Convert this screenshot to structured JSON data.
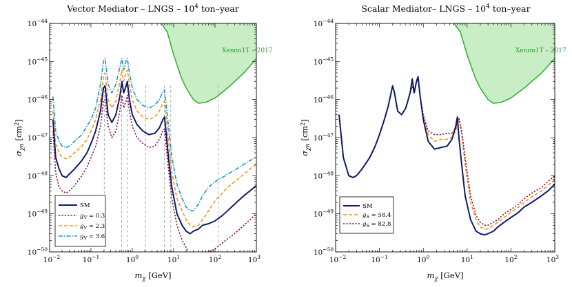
{
  "colors": {
    "sm": "#0b1a6e",
    "s1": "#8b1045",
    "s2": "#f5921b",
    "s3": "#1596b8",
    "xenon_fill": "#c9eec6",
    "xenon_line": "#31b531",
    "dashed_lines": "#999999"
  },
  "chart_data": [
    {
      "type": "line",
      "title": "Vector Mediator – LNGS – 10",
      "title_sup": "4",
      "title_tail": " ton–year",
      "xlabel_main": "m",
      "xlabel_sub": "χ",
      "xlabel_unit": " [GeV]",
      "ylabel_main": "σ",
      "ylabel_sub": "χn",
      "ylabel_unit": " [cm",
      "ylabel_sup": "2",
      "ylabel_close": "]",
      "xscale": "log",
      "yscale": "log",
      "xlim": [
        0.01,
        1000
      ],
      "ylim": [
        1e-50,
        1e-44
      ],
      "x_ticks": [
        {
          "base": "10",
          "exp": "−2"
        },
        {
          "base": "10",
          "exp": "−1"
        },
        {
          "base": "10",
          "exp": "0"
        },
        {
          "base": "10",
          "exp": "1"
        },
        {
          "base": "10",
          "exp": "2"
        },
        {
          "base": "10",
          "exp": "3"
        }
      ],
      "y_ticks": [
        {
          "base": "10",
          "exp": "−50"
        },
        {
          "base": "10",
          "exp": "−49"
        },
        {
          "base": "10",
          "exp": "−48"
        },
        {
          "base": "10",
          "exp": "−47"
        },
        {
          "base": "10",
          "exp": "−46"
        },
        {
          "base": "10",
          "exp": "−45"
        },
        {
          "base": "10",
          "exp": "−44"
        }
      ],
      "legend_position": "bottom-left",
      "xenon": {
        "label": "Xenon1T – 2017",
        "x": [
          5,
          7,
          10,
          15,
          20,
          30,
          40,
          60,
          100,
          200,
          500,
          1000
        ],
        "y": [
          1e-44,
          6e-45,
          1.5e-45,
          4e-46,
          2e-46,
          1e-46,
          8e-47,
          8.5e-47,
          1.1e-46,
          2e-46,
          5e-46,
          1.2e-45
        ]
      },
      "dashed_x": [
        0.21,
        0.55,
        0.75,
        2.1,
        6,
        8.5,
        120
      ],
      "series": [
        {
          "name": "SM",
          "key": "sm",
          "dash": "",
          "width": 2.0,
          "x": [
            0.012,
            0.014,
            0.017,
            0.02,
            0.025,
            0.03,
            0.04,
            0.06,
            0.08,
            0.1,
            0.13,
            0.17,
            0.2,
            0.22,
            0.26,
            0.32,
            0.4,
            0.5,
            0.56,
            0.62,
            0.7,
            0.76,
            0.85,
            1.0,
            1.3,
            1.8,
            2.5,
            3.5,
            4.5,
            5.5,
            6.0,
            6.5,
            7.5,
            9,
            12,
            16,
            20,
            25,
            30,
            40,
            50,
            70,
            100,
            150,
            200,
            300,
            500,
            700,
            1000
          ],
          "y": [
            3e-47,
            3e-48,
            1.5e-48,
            1e-48,
            9e-49,
            1.1e-48,
            1.5e-48,
            2.5e-48,
            4e-48,
            7e-48,
            1.5e-47,
            5e-47,
            2e-46,
            2.3e-46,
            4e-47,
            2.5e-47,
            4e-47,
            1.2e-46,
            3e-46,
            1.5e-46,
            2.2e-46,
            3e-46,
            1e-46,
            4e-47,
            2.2e-47,
            1.5e-47,
            1.2e-47,
            1.3e-47,
            1.8e-47,
            3e-47,
            3.5e-47,
            1.5e-47,
            3e-48,
            5e-49,
            1e-49,
            5e-50,
            3.5e-50,
            3e-50,
            3.5e-50,
            4e-50,
            5e-50,
            5.5e-50,
            6.5e-50,
            9e-50,
            1.2e-49,
            1.8e-49,
            3e-49,
            4e-49,
            5.5e-49
          ]
        },
        {
          "name": "g",
          "sub": "V",
          "value": " = 0.3",
          "key": "s1",
          "dash": "2.2,2.2",
          "width": 1.6,
          "x": [
            0.012,
            0.014,
            0.017,
            0.02,
            0.025,
            0.03,
            0.04,
            0.06,
            0.08,
            0.1,
            0.13,
            0.17,
            0.2,
            0.22,
            0.26,
            0.32,
            0.4,
            0.5,
            0.56,
            0.62,
            0.7,
            0.76,
            0.85,
            1.0,
            1.3,
            1.8,
            2.5,
            3.5,
            4.5,
            5.5,
            6.0,
            6.5,
            7.5,
            9,
            12,
            16,
            20,
            25,
            30,
            40,
            50,
            70,
            100,
            150,
            200,
            300,
            500,
            700,
            1000
          ],
          "y": [
            1.5e-47,
            1.2e-48,
            5e-49,
            4e-49,
            3.5e-49,
            4e-49,
            5.5e-49,
            1e-48,
            1.7e-48,
            3e-48,
            6e-48,
            2e-47,
            9e-47,
            1e-46,
            2e-47,
            1e-47,
            1.5e-47,
            5e-47,
            1.3e-46,
            6e-47,
            9e-47,
            1.3e-46,
            5e-47,
            2e-47,
            1e-47,
            7e-48,
            5.5e-48,
            6e-48,
            9e-48,
            1.5e-47,
            1.7e-47,
            7e-48,
            1.5e-48,
            2.5e-49,
            5e-50,
            2e-50,
            1.3e-50,
            8e-51,
            8e-51,
            8.5e-51,
            9e-51,
            1e-50,
            1.2e-50,
            1.7e-50,
            2.2e-50,
            3e-50,
            5e-50,
            7e-50,
            1e-49
          ]
        },
        {
          "name": "g",
          "sub": "V",
          "value": " = 2.3",
          "key": "s2",
          "dash": "5,3",
          "width": 1.6,
          "x": [
            0.012,
            0.014,
            0.017,
            0.02,
            0.025,
            0.03,
            0.04,
            0.06,
            0.08,
            0.1,
            0.13,
            0.17,
            0.2,
            0.22,
            0.26,
            0.32,
            0.4,
            0.5,
            0.56,
            0.62,
            0.7,
            0.76,
            0.85,
            1.0,
            1.3,
            1.8,
            2.5,
            3.5,
            4.5,
            5.5,
            6.0,
            6.5,
            7.5,
            9,
            12,
            16,
            20,
            25,
            30,
            40,
            50,
            70,
            100,
            150,
            200,
            300,
            500,
            700,
            1000
          ],
          "y": [
            5e-47,
            7e-48,
            4e-48,
            3e-48,
            2.8e-48,
            3e-48,
            4e-48,
            6e-48,
            9e-48,
            1.5e-47,
            3e-47,
            1e-46,
            4e-46,
            5e-46,
            1e-46,
            6e-47,
            9e-47,
            3e-46,
            6e-46,
            3e-46,
            5e-46,
            6e-46,
            2.5e-46,
            1e-46,
            5e-47,
            3.5e-47,
            3e-47,
            3.5e-47,
            5e-47,
            8e-47,
            9e-47,
            4e-47,
            8e-48,
            1.2e-48,
            2.5e-49,
            1.2e-49,
            7e-50,
            5e-50,
            4.5e-50,
            5e-50,
            7e-50,
            1.2e-49,
            2.2e-49,
            3.5e-49,
            5e-49,
            7e-49,
            1.1e-48,
            1.5e-48,
            2e-48
          ]
        },
        {
          "name": "g",
          "sub": "V",
          "value": " = 3.6",
          "key": "s3",
          "dash": "6,2,1.5,2",
          "width": 1.6,
          "x": [
            0.012,
            0.014,
            0.017,
            0.02,
            0.025,
            0.03,
            0.04,
            0.06,
            0.08,
            0.1,
            0.13,
            0.17,
            0.2,
            0.22,
            0.26,
            0.32,
            0.4,
            0.5,
            0.56,
            0.62,
            0.7,
            0.76,
            0.85,
            1.0,
            1.3,
            1.8,
            2.5,
            3.5,
            4.5,
            5.5,
            6.0,
            6.5,
            7.5,
            9,
            12,
            16,
            20,
            25,
            30,
            40,
            50,
            70,
            100,
            150,
            200,
            300,
            500,
            700,
            1000
          ],
          "y": [
            1.2e-46,
            1.5e-47,
            8e-48,
            6e-48,
            5.5e-48,
            6e-48,
            8e-48,
            1.2e-47,
            2e-47,
            3e-47,
            6e-47,
            2.5e-46,
            1e-45,
            1.2e-45,
            2.5e-46,
            1.5e-46,
            2.5e-46,
            7e-46,
            1.2e-45,
            6e-46,
            1e-45,
            1.2e-45,
            5e-46,
            2e-46,
            1e-46,
            7e-47,
            6e-47,
            7e-47,
            1e-46,
            1.6e-46,
            1.8e-46,
            8e-47,
            2e-47,
            3e-48,
            6e-49,
            2.5e-49,
            1.5e-49,
            1.2e-49,
            1.2e-49,
            1.8e-49,
            3e-49,
            5e-49,
            7e-49,
            9e-49,
            1.1e-48,
            1.4e-48,
            2e-48,
            2.5e-48,
            3e-48
          ]
        }
      ]
    },
    {
      "type": "line",
      "title": "Scalar Mediator– LNGS – 10",
      "title_sup": "4",
      "title_tail": " ton–year",
      "xlabel_main": "m",
      "xlabel_sub": "χ",
      "xlabel_unit": " [GeV]",
      "ylabel_main": "σ",
      "ylabel_sub": "χn",
      "ylabel_unit": " [cm",
      "ylabel_sup": "2",
      "ylabel_close": "]",
      "xscale": "log",
      "yscale": "log",
      "xlim": [
        0.01,
        1000
      ],
      "ylim": [
        1e-50,
        1e-44
      ],
      "x_ticks": [
        {
          "base": "10",
          "exp": "−2"
        },
        {
          "base": "10",
          "exp": "−1"
        },
        {
          "base": "10",
          "exp": "0"
        },
        {
          "base": "10",
          "exp": "1"
        },
        {
          "base": "10",
          "exp": "2"
        },
        {
          "base": "10",
          "exp": "3"
        }
      ],
      "y_ticks": [
        {
          "base": "10",
          "exp": "−50"
        },
        {
          "base": "10",
          "exp": "−49"
        },
        {
          "base": "10",
          "exp": "−48"
        },
        {
          "base": "10",
          "exp": "−47"
        },
        {
          "base": "10",
          "exp": "−46"
        },
        {
          "base": "10",
          "exp": "−45"
        },
        {
          "base": "10",
          "exp": "−44"
        }
      ],
      "legend_position": "bottom-left",
      "xenon": {
        "label": "Xenon1T – 2017",
        "x": [
          5,
          7,
          10,
          15,
          20,
          30,
          40,
          60,
          100,
          200,
          500,
          1000
        ],
        "y": [
          1e-44,
          6e-45,
          1.5e-45,
          4e-46,
          2e-46,
          1e-46,
          8e-47,
          8.5e-47,
          1.1e-46,
          2e-46,
          5e-46,
          1.2e-45
        ]
      },
      "dashed_x": [],
      "series": [
        {
          "name": "SM",
          "key": "sm",
          "dash": "",
          "width": 2.0,
          "x": [
            0.012,
            0.015,
            0.02,
            0.025,
            0.03,
            0.04,
            0.06,
            0.08,
            0.1,
            0.13,
            0.16,
            0.2,
            0.22,
            0.26,
            0.32,
            0.4,
            0.5,
            0.56,
            0.62,
            0.7,
            0.76,
            0.85,
            1.0,
            1.3,
            1.8,
            2.5,
            3.5,
            4.5,
            5.5,
            6.0,
            6.5,
            7.5,
            9,
            12,
            16,
            20,
            25,
            30,
            40,
            50,
            70,
            100,
            150,
            200,
            300,
            500,
            700,
            1000
          ],
          "y": [
            4e-47,
            3e-48,
            1e-48,
            9e-49,
            1e-48,
            1.5e-48,
            3e-48,
            6e-48,
            1.2e-47,
            3e-47,
            7e-47,
            2.3e-46,
            1.5e-46,
            5e-47,
            4e-47,
            6e-47,
            1.5e-46,
            3.5e-46,
            1.5e-46,
            3e-46,
            4e-46,
            1.2e-46,
            3e-47,
            8e-48,
            5e-48,
            5.5e-48,
            6e-48,
            9e-48,
            2e-47,
            3.5e-47,
            1e-47,
            2e-48,
            3e-49,
            7e-50,
            3.5e-50,
            3e-50,
            2.8e-50,
            3e-50,
            3.5e-50,
            4.5e-50,
            6e-50,
            8e-50,
            1.1e-49,
            1.5e-49,
            2e-49,
            3e-49,
            4e-49,
            6e-49
          ]
        },
        {
          "name": "g",
          "sub": "S",
          "value": " = 58.4",
          "key": "s2",
          "dash": "5,3",
          "width": 1.6,
          "x": [
            0.012,
            0.015,
            0.02,
            0.025,
            0.03,
            0.04,
            0.06,
            0.08,
            0.1,
            0.13,
            0.16,
            0.2,
            0.22,
            0.26,
            0.32,
            0.4,
            0.5,
            0.56,
            0.62,
            0.7,
            0.76,
            0.85,
            1.0,
            1.3,
            1.8,
            2.5,
            3.5,
            4.5,
            5.5,
            6.0,
            6.5,
            7.5,
            9,
            12,
            16,
            20,
            25,
            30,
            40,
            50,
            70,
            100,
            150,
            200,
            300,
            500,
            700,
            1000
          ],
          "y": [
            4e-47,
            3e-48,
            1e-48,
            9e-49,
            1e-48,
            1.5e-48,
            3e-48,
            6e-48,
            1.2e-47,
            3e-47,
            7e-47,
            2.2e-46,
            1.5e-46,
            5e-47,
            4e-47,
            6e-47,
            1.5e-46,
            2.5e-46,
            1.5e-46,
            3e-46,
            3.5e-46,
            1.2e-46,
            3.5e-47,
            1.2e-47,
            8e-48,
            9e-48,
            9e-48,
            1e-47,
            1.5e-47,
            2.5e-47,
            3e-47,
            1.2e-47,
            2e-48,
            2e-49,
            7e-50,
            4.5e-50,
            4e-50,
            4e-50,
            5e-50,
            6e-50,
            8e-50,
            1.1e-49,
            1.5e-49,
            2e-49,
            2.8e-49,
            4e-49,
            5.5e-49,
            8e-49
          ]
        },
        {
          "name": "g",
          "sub": "S",
          "value": " = 82.8",
          "key": "s1",
          "dash": "2.2,2.2",
          "width": 1.6,
          "x": [
            0.012,
            0.015,
            0.02,
            0.025,
            0.03,
            0.04,
            0.06,
            0.08,
            0.1,
            0.13,
            0.16,
            0.2,
            0.22,
            0.26,
            0.32,
            0.4,
            0.5,
            0.56,
            0.62,
            0.7,
            0.76,
            0.85,
            1.0,
            1.3,
            1.8,
            2.5,
            3.5,
            4.5,
            5.5,
            6.0,
            6.5,
            7.5,
            9,
            12,
            16,
            20,
            25,
            30,
            40,
            50,
            70,
            100,
            150,
            200,
            300,
            500,
            700,
            1000
          ],
          "y": [
            4e-47,
            3e-48,
            1e-48,
            9e-49,
            1e-48,
            1.5e-48,
            3e-48,
            6e-48,
            1.2e-47,
            3e-47,
            7e-47,
            2.3e-46,
            1.5e-46,
            5e-47,
            4e-47,
            6e-47,
            1.5e-46,
            2.2e-46,
            1.5e-46,
            3e-46,
            3.3e-46,
            1.2e-46,
            4e-47,
            1.5e-47,
            1.2e-47,
            1.2e-47,
            1.3e-47,
            1.3e-47,
            1.7e-47,
            2.8e-47,
            3.3e-47,
            1.5e-47,
            3e-48,
            3e-49,
            9e-50,
            6e-50,
            5e-50,
            5e-50,
            6e-50,
            7e-50,
            1e-49,
            1.3e-49,
            1.8e-49,
            2.5e-49,
            3.5e-49,
            5e-49,
            7e-49,
            1e-48
          ]
        }
      ]
    }
  ]
}
